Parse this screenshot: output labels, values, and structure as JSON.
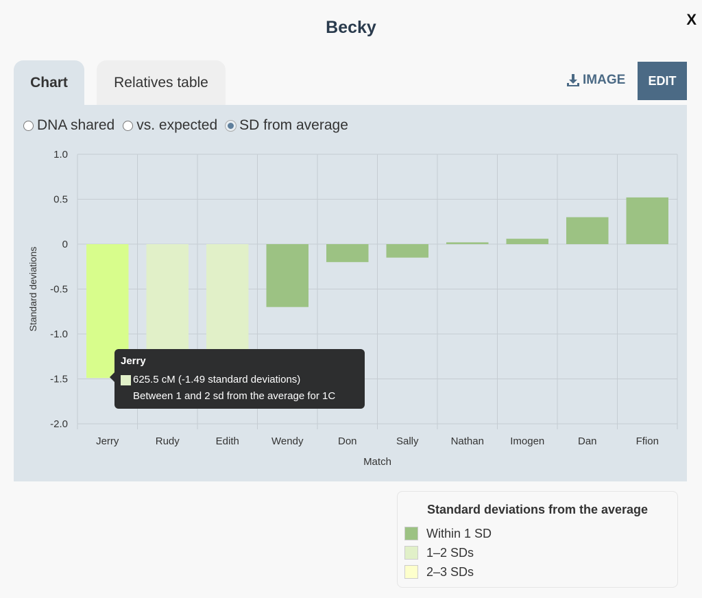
{
  "title": "Becky",
  "close_label": "X",
  "tabs": [
    {
      "label": "Chart",
      "active": true
    },
    {
      "label": "Relatives table",
      "active": false
    }
  ],
  "toolbar": {
    "image_label": "IMAGE",
    "edit_label": "EDIT",
    "image_icon": "download-icon"
  },
  "radios": [
    {
      "label": "DNA shared",
      "checked": false
    },
    {
      "label": "vs. expected",
      "checked": false
    },
    {
      "label": "SD from average",
      "checked": true
    }
  ],
  "chart_data": {
    "type": "bar",
    "xlabel": "Match",
    "ylabel": "Standard deviations",
    "ylim": [
      -2.0,
      1.0
    ],
    "yticks": [
      "1.0",
      "0.5",
      "0",
      "-0.5",
      "-1.0",
      "-1.5",
      "-2.0"
    ],
    "grid": true,
    "categories": [
      "Jerry",
      "Rudy",
      "Edith",
      "Wendy",
      "Don",
      "Sally",
      "Nathan",
      "Imogen",
      "Dan",
      "Ffion"
    ],
    "values": [
      -1.49,
      -1.4,
      -1.21,
      -0.7,
      -0.2,
      -0.15,
      0.02,
      0.06,
      0.3,
      0.52
    ],
    "bar_colors": [
      "#d8fd8c",
      "#e1f0c8",
      "#e1f0c8",
      "#9cc283",
      "#9cc283",
      "#9cc283",
      "#9cc283",
      "#9cc283",
      "#9cc283",
      "#9cc283"
    ]
  },
  "tooltip": {
    "title": "Jerry",
    "line1": "625.5 cM (-1.49 standard deviations)",
    "line2": "Between 1 and 2 sd from the average for 1C",
    "swatch": "#e1f0c8"
  },
  "legend": {
    "title": "Standard deviations from the average",
    "items": [
      {
        "label": "Within 1 SD",
        "color": "#9cc283"
      },
      {
        "label": "1–2 SDs",
        "color": "#e1f0c8"
      },
      {
        "label": "2–3 SDs",
        "color": "#fdffcc"
      }
    ]
  }
}
